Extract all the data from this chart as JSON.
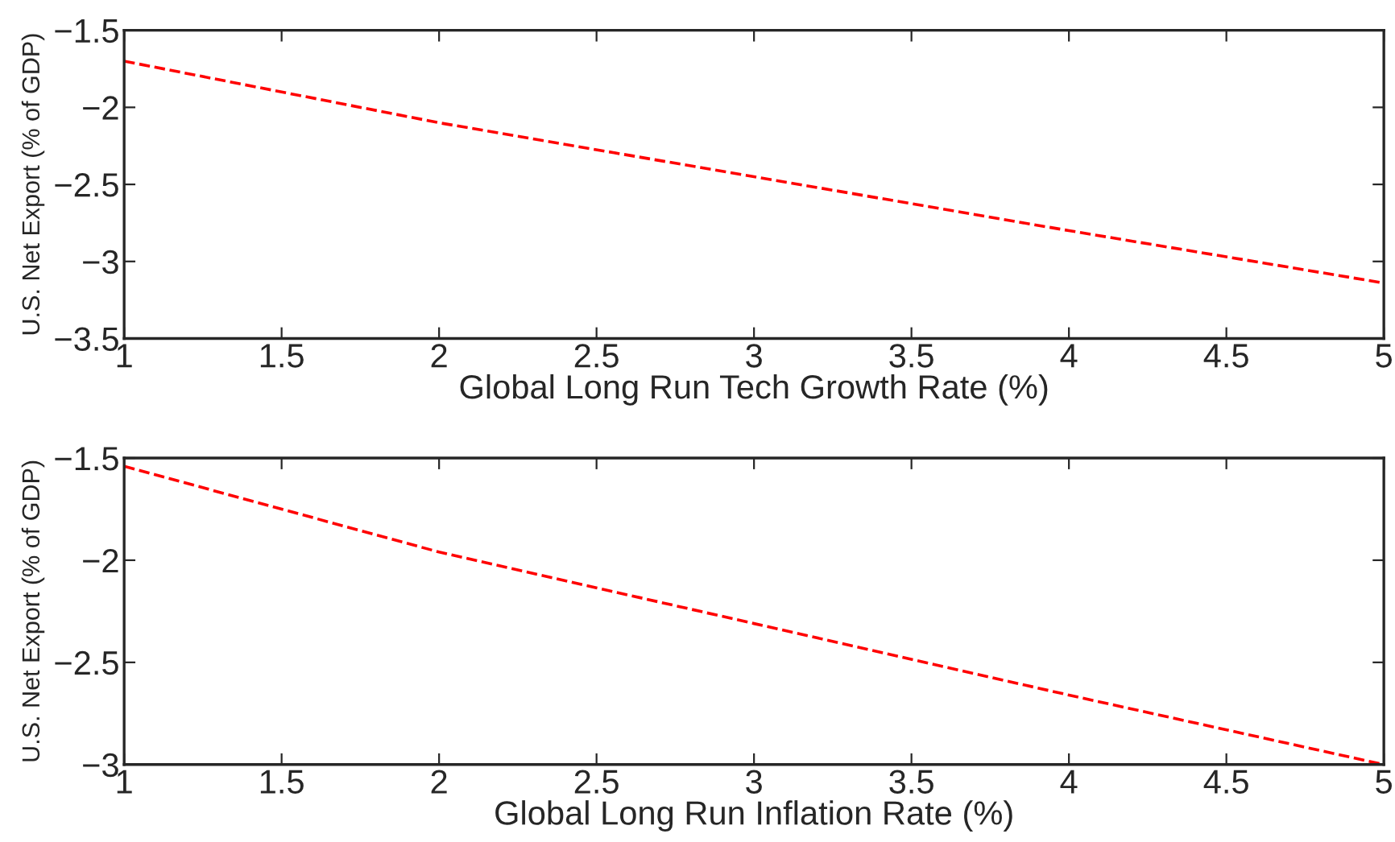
{
  "chart_data": [
    {
      "type": "line",
      "xlabel": "Global Long Run Tech Growth Rate (%)",
      "ylabel": "U.S. Net Export (% of GDP)",
      "x": [
        1,
        2,
        3,
        4,
        5
      ],
      "series": [
        {
          "color": "#ff0000",
          "values": [
            -1.7,
            -2.1,
            -2.45,
            -2.8,
            -3.14
          ]
        }
      ],
      "xlim": [
        1,
        5
      ],
      "xticks": [
        1,
        1.5,
        2,
        2.5,
        3,
        3.5,
        4,
        4.5,
        5
      ],
      "ylim": [
        -3.5,
        -1.5
      ],
      "yticks": [
        -3.5,
        -3,
        -2.5,
        -2,
        -1.5
      ],
      "grid": false,
      "line_style": "dashed",
      "marker": "none"
    },
    {
      "type": "line",
      "xlabel": "Global Long Run Inflation Rate (%)",
      "ylabel": "U.S. Net Export (% of GDP)",
      "x": [
        1,
        2,
        3,
        4,
        5
      ],
      "series": [
        {
          "color": "#ff0000",
          "values": [
            -1.54,
            -1.96,
            -2.31,
            -2.66,
            -3.0
          ]
        }
      ],
      "xlim": [
        1,
        5
      ],
      "xticks": [
        1,
        1.5,
        2,
        2.5,
        3,
        3.5,
        4,
        4.5,
        5
      ],
      "ylim": [
        -3,
        -1.5
      ],
      "yticks": [
        -3,
        -2.5,
        -2,
        -1.5
      ],
      "grid": false,
      "line_style": "dashed",
      "marker": "none"
    }
  ]
}
